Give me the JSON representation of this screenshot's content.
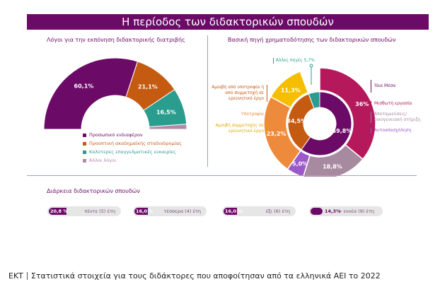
{
  "title": "Η περίοδος των διδακτορικών σπουδών",
  "footer": {
    "org": "ΕΚΤ",
    "text": "Στατιστικά στοιχεία για τους διδάκτορες που αποφοίτησαν από τα ελληνικά ΑΕΙ το 2022"
  },
  "chart_data": [
    {
      "type": "pie",
      "subtype": "half-donut",
      "title": "Λόγοι για την εκπόνηση διδακτορικής διατριβής",
      "categories": [
        "Προσωπικό ενδιαφέρον",
        "Προοπτική ακαδημαϊκής σταδιοδρομίας",
        "Καλύτερες επαγγελματικές ευκαιρίες",
        "Άλλοι λόγοι"
      ],
      "values": [
        60.1,
        21.1,
        16.5,
        2.3
      ],
      "labels": [
        "60,1%",
        "21,1%",
        "16,5%",
        ""
      ],
      "colors": [
        "#6b0a67",
        "#c55a11",
        "#2a9d8f",
        "#b08aa8"
      ],
      "legend": "bottom"
    },
    {
      "type": "pie",
      "subtype": "nested-donut",
      "title": "Βασική πηγή χρηματοδότησης των διδακτορικών σπουδών",
      "inner": {
        "categories": [
          "Ίδια Μέσα",
          "Αμοιβή από υποτροφία ή από συμμετοχή σε ερευνητικό έργο",
          "Άλλες πηγές"
        ],
        "values": [
          59.8,
          34.5,
          5.7
        ],
        "labels": [
          "59,8%",
          "34,5%",
          ""
        ],
        "colors": [
          "#6b0a67",
          "#c55a11",
          "#2a9d8f"
        ]
      },
      "outer": {
        "categories": [
          "Μισθωτή εργασία",
          "Αποταμιεύσεις/ οικογενειακή στήριξη",
          "Αυτοαπασχόληση",
          "Υποτροφία",
          "Αμοιβή συμμετοχής σε ερευνητικό έργο"
        ],
        "values": [
          36.0,
          18.8,
          5.0,
          23.2,
          11.3
        ],
        "labels": [
          "36%",
          "18,8%",
          "5,0%",
          "23,2%",
          "11,3%"
        ],
        "colors": [
          "#b5195b",
          "#a88aa0",
          "#9b59c9",
          "#ee8a3c",
          "#f5be00"
        ]
      },
      "annotation": "Άλλες πηγές 5,7%",
      "left_labels": [
        {
          "text": "Αμοιβή από υποτροφία ή από συμμετοχή σε ερευνητικό έργο",
          "color": "#c55a11"
        },
        {
          "text": "Υποτροφία",
          "color": "#ee8a3c"
        },
        {
          "text": "Αμοιβή συμμετοχής σε ερευνητικό έργο",
          "color": "#e0a800"
        }
      ],
      "right_labels": [
        {
          "text": "Ίδια Μέσα",
          "color": "#6b0a67"
        },
        {
          "text": "Μισθωτή εργασία",
          "color": "#b5195b"
        },
        {
          "text": "Αποταμιεύσεις/ οικογενειακή στήριξη",
          "color": "#a88aa0"
        },
        {
          "text": "Αυτοαπασχόληση",
          "color": "#9b59c9"
        }
      ]
    },
    {
      "type": "bar",
      "subtype": "progress-pills",
      "title": "Διάρκεια διδακτορικών σπουδών",
      "categories": [
        "πέντε (5) έτη",
        "τέσσερα (4) έτη",
        "έξι (6) έτη",
        "> εννέα (9) έτη"
      ],
      "values": [
        20.8,
        16.0,
        16.0,
        14.3
      ],
      "labels": [
        "20,8 %",
        "16,0 %",
        "16,0 %",
        "14,3%"
      ]
    }
  ]
}
